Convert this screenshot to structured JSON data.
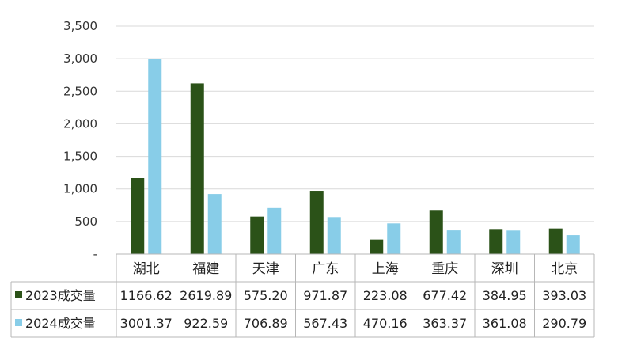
{
  "chart_data": {
    "type": "bar",
    "categories": [
      "湖北",
      "福建",
      "天津",
      "广东",
      "上海",
      "重庆",
      "深圳",
      "北京"
    ],
    "series": [
      {
        "name": "2023成交量",
        "color": "#2b5218",
        "values": [
          1166.62,
          2619.89,
          575.2,
          971.87,
          223.08,
          677.42,
          384.95,
          393.03
        ],
        "labels": [
          "1166.62",
          "2619.89",
          "575.20",
          "971.87",
          "223.08",
          "677.42",
          "384.95",
          "393.03"
        ]
      },
      {
        "name": "2024成交量",
        "color": "#88cde8",
        "values": [
          3001.37,
          922.59,
          706.89,
          567.43,
          470.16,
          363.37,
          361.08,
          290.79
        ],
        "labels": [
          "3001.37",
          "922.59",
          "706.89",
          "567.43",
          "470.16",
          "363.37",
          "361.08",
          "290.79"
        ]
      }
    ],
    "ylim": [
      0,
      3500
    ],
    "yticks": [
      0,
      500,
      1000,
      1500,
      2000,
      2500,
      3000,
      3500
    ],
    "ytick_labels": [
      "-",
      "500",
      "1,000",
      "1,500",
      "2,000",
      "2,500",
      "3,000",
      "3,500"
    ],
    "grid": true,
    "legend": "data-table",
    "title": "",
    "xlabel": "",
    "ylabel": ""
  }
}
